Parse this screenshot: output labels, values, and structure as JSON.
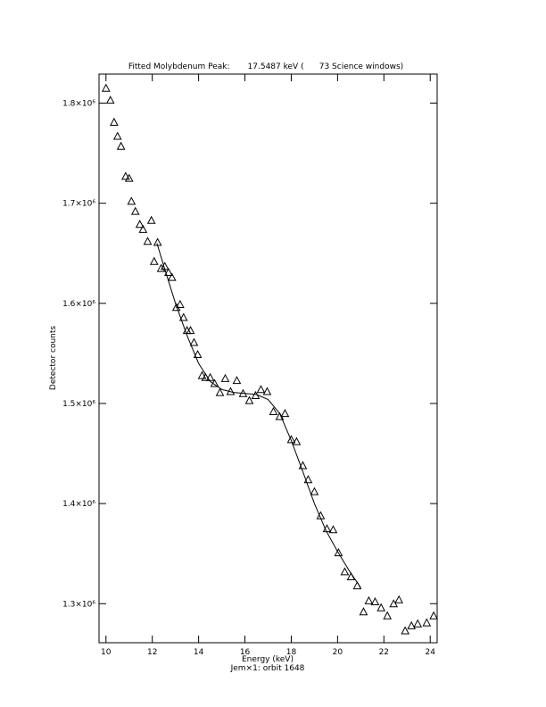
{
  "chart_data": {
    "type": "scatter",
    "title": "Fitted Molybdenum Peak:       17.5487 keV (      73 Science windows)",
    "x_label": "Energy (keV)",
    "subtitle": "Jem×1: orbit 1648",
    "y_label": "Detector counts",
    "color": "#000000",
    "xlim": [
      9.7,
      24.3
    ],
    "ylim": [
      1261000,
      1829000
    ],
    "xticks": [
      10,
      12,
      14,
      16,
      18,
      20,
      22,
      24
    ],
    "yticks": [
      {
        "value": 1300000,
        "label": "1.3×10⁶"
      },
      {
        "value": 1400000,
        "label": "1.4×10⁶"
      },
      {
        "value": 1500000,
        "label": "1.5×10⁶"
      },
      {
        "value": 1600000,
        "label": "1.6×10⁶"
      },
      {
        "value": 1700000,
        "label": "1.7×10⁶"
      },
      {
        "value": 1800000,
        "label": "1.8×10⁶"
      }
    ],
    "x": [
      10.0,
      10.19,
      10.35,
      10.5,
      10.65,
      10.85,
      11.0,
      11.1,
      11.27,
      11.46,
      11.6,
      11.8,
      11.96,
      12.08,
      12.23,
      12.38,
      12.54,
      12.7,
      12.85,
      13.04,
      13.2,
      13.35,
      13.5,
      13.65,
      13.8,
      13.96,
      14.15,
      14.3,
      14.5,
      14.69,
      14.92,
      15.15,
      15.38,
      15.65,
      15.92,
      16.19,
      16.46,
      16.69,
      16.96,
      17.23,
      17.5,
      17.73,
      18.0,
      18.23,
      18.5,
      18.73,
      19.0,
      19.27,
      19.54,
      19.81,
      20.04,
      20.31,
      20.58,
      20.85,
      21.12,
      21.35,
      21.62,
      21.88,
      22.15,
      22.42,
      22.65,
      22.92,
      23.19,
      23.46,
      23.85,
      24.15
    ],
    "values": [
      1815000,
      1803000,
      1781000,
      1767000,
      1757000,
      1727000,
      1725000,
      1702000,
      1692000,
      1679000,
      1674000,
      1662000,
      1683000,
      1642000,
      1661000,
      1635000,
      1637000,
      1631000,
      1626000,
      1596000,
      1599000,
      1586000,
      1573000,
      1573000,
      1561000,
      1549000,
      1528000,
      1526000,
      1526000,
      1520000,
      1511000,
      1525000,
      1512000,
      1523000,
      1510000,
      1503000,
      1508000,
      1514000,
      1512000,
      1492000,
      1487000,
      1490000,
      1464000,
      1462000,
      1438000,
      1424000,
      1412000,
      1388000,
      1375000,
      1374000,
      1351000,
      1332000,
      1327000,
      1318000,
      1292000,
      1303000,
      1302000,
      1296000,
      1288000,
      1300000,
      1304000,
      1273000,
      1278000,
      1280000,
      1281000,
      1288000
    ],
    "fit": {
      "x": [
        12.2,
        12.5,
        13.0,
        13.5,
        14.0,
        14.5,
        15.0,
        15.5,
        16.0,
        16.5,
        17.0,
        17.5,
        18.0,
        18.5,
        19.0,
        19.5,
        20.0,
        20.5,
        21.0
      ],
      "values": [
        1660000,
        1637000,
        1600000,
        1568000,
        1540000,
        1522000,
        1514000,
        1511000,
        1510000,
        1509000,
        1504000,
        1490000,
        1463000,
        1432000,
        1400000,
        1373000,
        1352000,
        1333000,
        1316000
      ]
    }
  }
}
